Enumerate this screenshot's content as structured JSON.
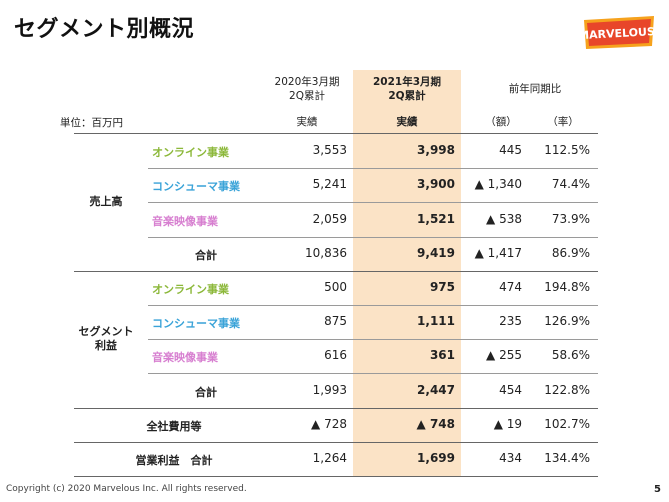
{
  "title": "セグメント別概況",
  "logo": {
    "text": "MARVELOUS!",
    "color": "#e8462a",
    "accent": "#f6a21d"
  },
  "unit_label": "単位：百万円",
  "headers": {
    "prev_period": [
      "2020年3月期",
      "2Q累計"
    ],
    "curr_period": [
      "2021年3月期",
      "2Q累計"
    ],
    "yoy": "前年同期比",
    "actual_prev": "実績",
    "actual_curr": "実績",
    "amount": "（額）",
    "rate": "（率）"
  },
  "segment_colors": {
    "online": "#8cb83a",
    "consumer": "#3aa3d8",
    "music": "#d77fd0",
    "total": "#222222"
  },
  "groups": [
    {
      "label": [
        "売上高"
      ],
      "rows": [
        {
          "name": "オンライン事業",
          "kind": "online",
          "prev": "3,553",
          "curr": "3,998",
          "amount": "445",
          "rate": "112.5%"
        },
        {
          "name": "コンシューマ事業",
          "kind": "consumer",
          "prev": "5,241",
          "curr": "3,900",
          "amount": "▲ 1,340",
          "rate": "74.4%"
        },
        {
          "name": "音楽映像事業",
          "kind": "music",
          "prev": "2,059",
          "curr": "1,521",
          "amount": "▲ 538",
          "rate": "73.9%"
        },
        {
          "name": "合計",
          "kind": "total",
          "prev": "10,836",
          "curr": "9,419",
          "amount": "▲ 1,417",
          "rate": "86.9%"
        }
      ]
    },
    {
      "label": [
        "セグメント",
        "利益"
      ],
      "rows": [
        {
          "name": "オンライン事業",
          "kind": "online",
          "prev": "500",
          "curr": "975",
          "amount": "474",
          "rate": "194.8%"
        },
        {
          "name": "コンシューマ事業",
          "kind": "consumer",
          "prev": "875",
          "curr": "1,111",
          "amount": "235",
          "rate": "126.9%"
        },
        {
          "name": "音楽映像事業",
          "kind": "music",
          "prev": "616",
          "curr": "361",
          "amount": "▲ 255",
          "rate": "58.6%"
        },
        {
          "name": "合計",
          "kind": "total",
          "prev": "1,993",
          "curr": "2,447",
          "amount": "454",
          "rate": "122.8%"
        }
      ]
    }
  ],
  "standalone_rows": [
    {
      "name": "全社費用等",
      "prev": "▲ 728",
      "curr": "▲ 748",
      "amount": "▲ 19",
      "rate": "102.7%"
    },
    {
      "name": "営業利益　合計",
      "prev": "1,264",
      "curr": "1,699",
      "amount": "434",
      "rate": "134.4%"
    }
  ],
  "footer": "Copyright (c) 2020 Marvelous Inc. All rights reserved.",
  "page_number": "5"
}
